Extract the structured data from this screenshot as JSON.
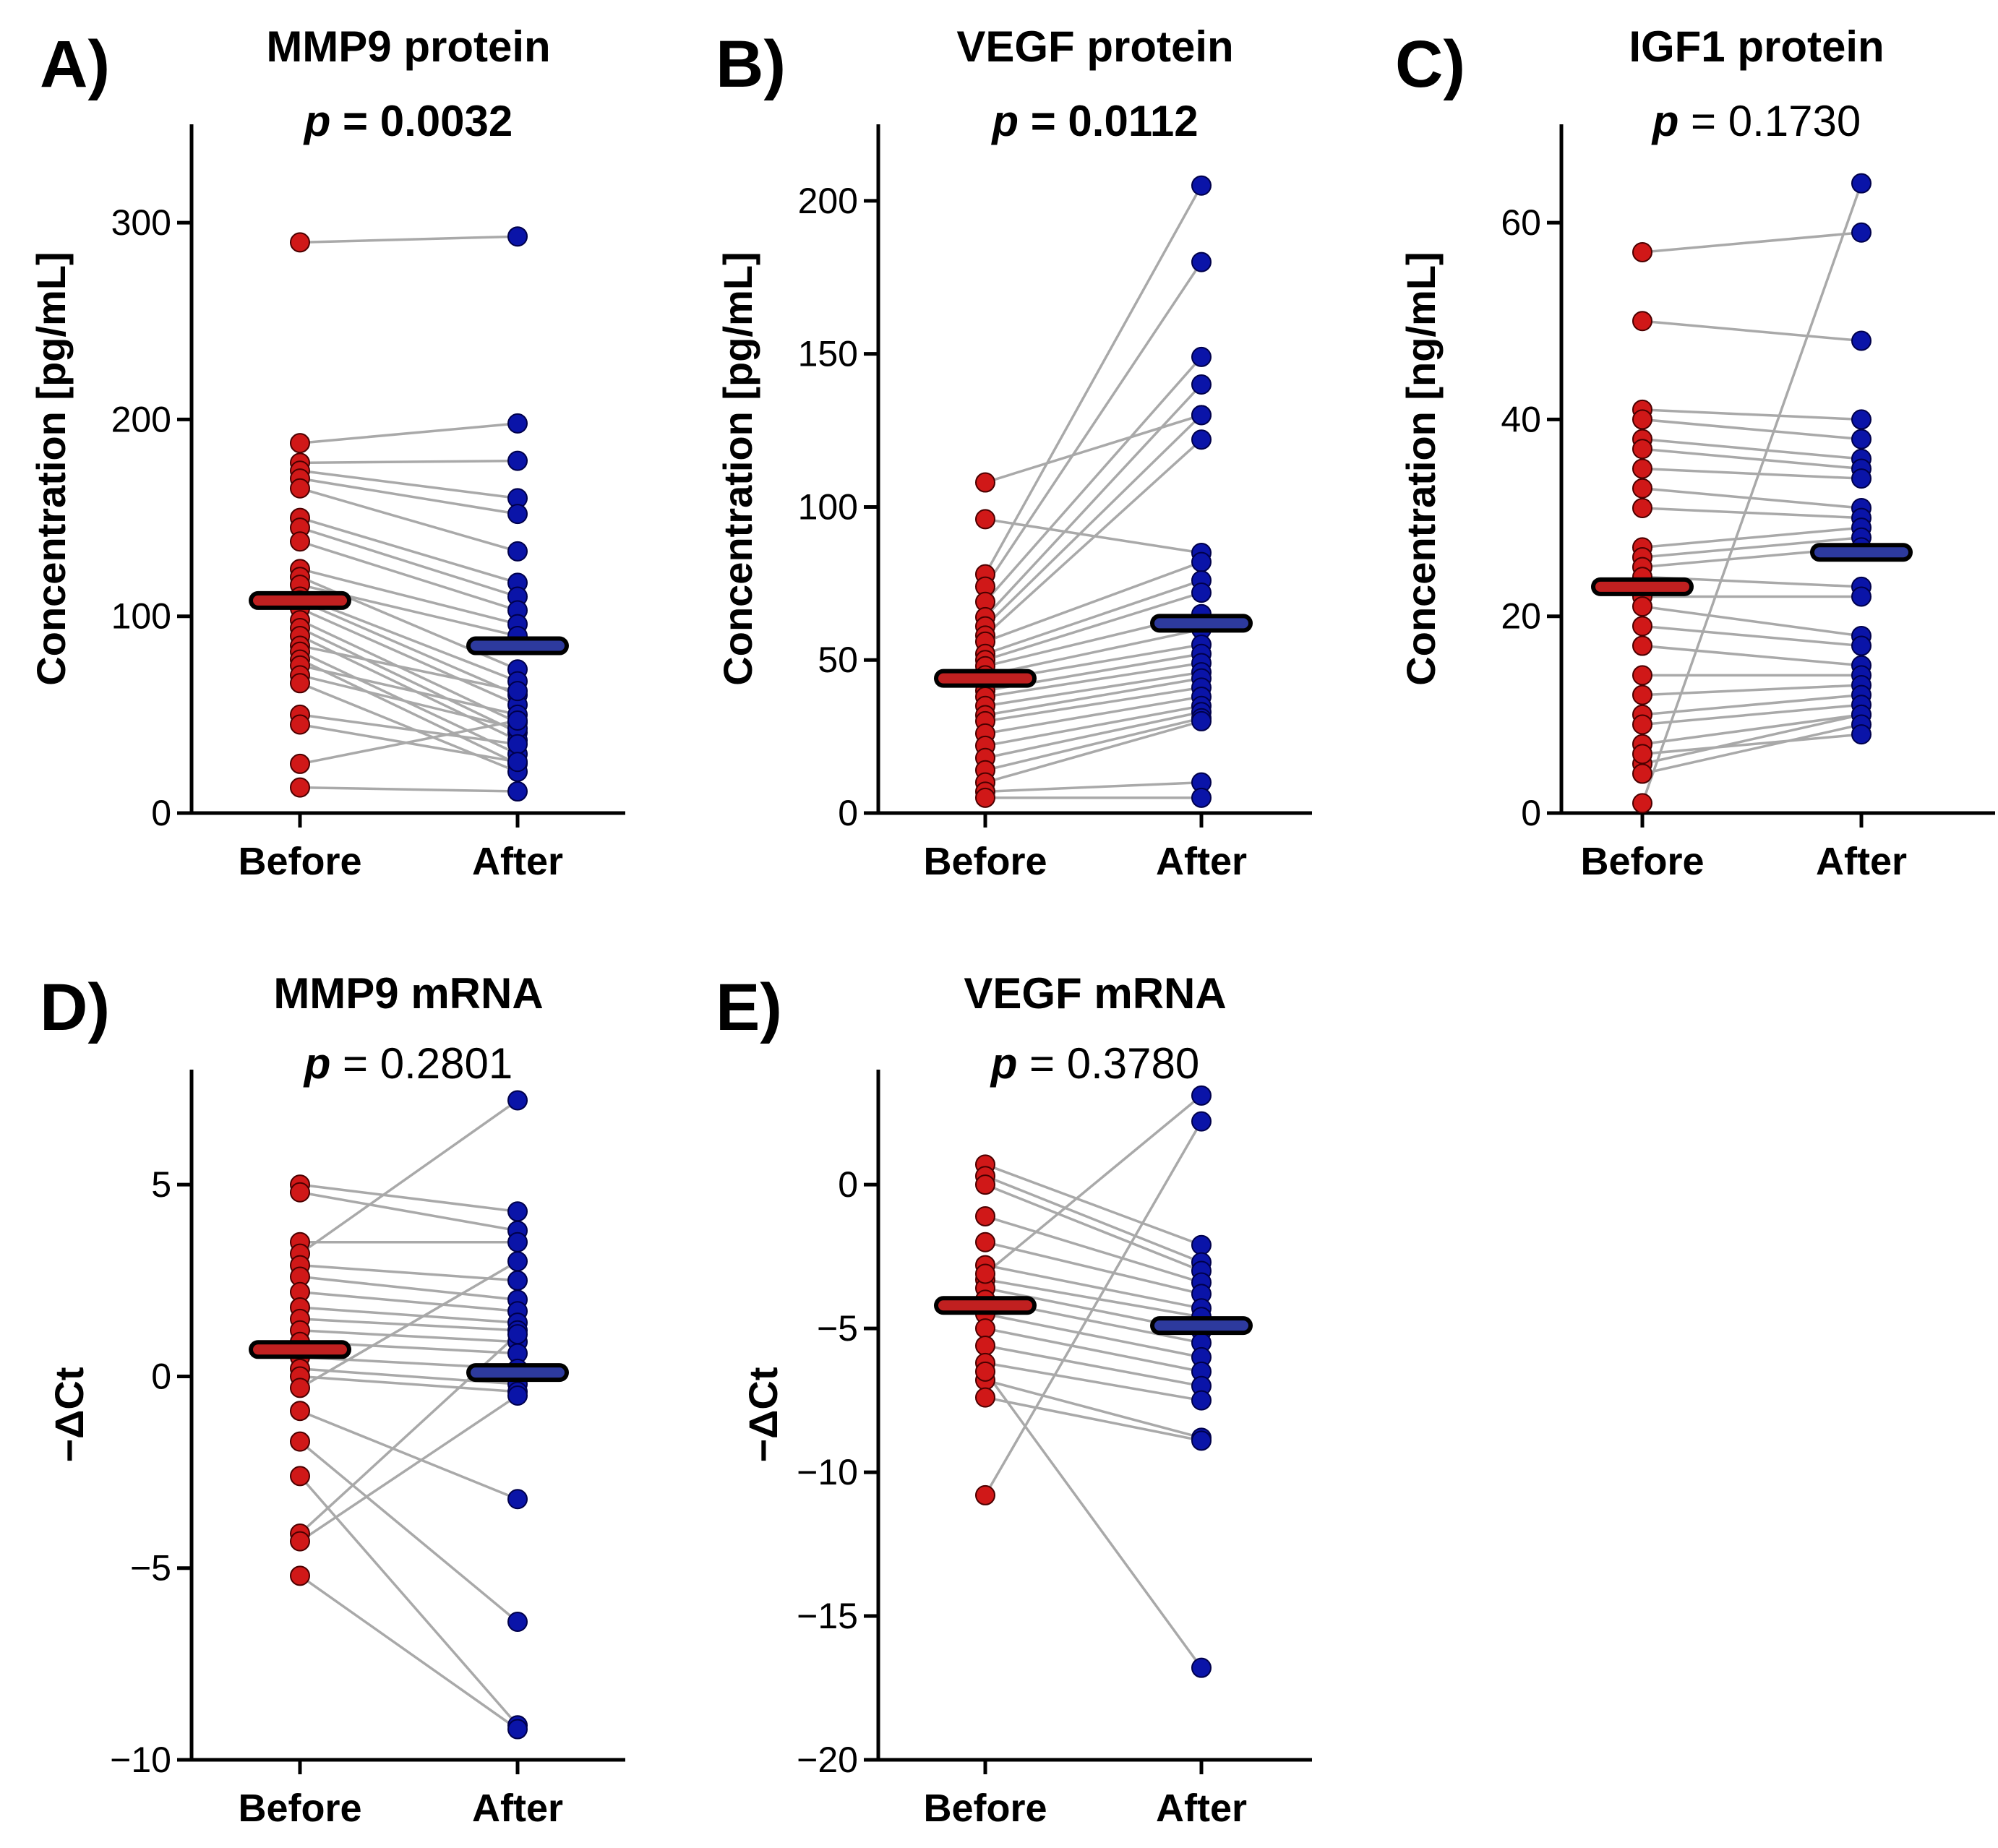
{
  "colors": {
    "before": "#d01818",
    "after": "#0a14a8",
    "before_mean": "#c02020",
    "after_mean": "#2d3a9e",
    "connector": "#a9a9a9",
    "axis": "#000000"
  },
  "chart_data": [
    {
      "id": "A",
      "type": "scatter",
      "panel_label": "A)",
      "title": "MMP9 protein",
      "p_prefix": "p",
      "p_text": " = 0.0032",
      "p_significant": true,
      "ylabel": "Concentration [pg/mL]",
      "ylim": [
        0,
        350
      ],
      "yticks": [
        0,
        100,
        200,
        300
      ],
      "ytick_labels": [
        "0",
        "100",
        "200",
        "300"
      ],
      "categories": [
        "Before",
        "After"
      ],
      "mean_before": 108,
      "mean_after": 85,
      "pairs": [
        [
          290,
          293
        ],
        [
          188,
          198
        ],
        [
          178,
          179
        ],
        [
          174,
          160
        ],
        [
          170,
          152
        ],
        [
          165,
          133
        ],
        [
          150,
          117
        ],
        [
          145,
          110
        ],
        [
          138,
          103
        ],
        [
          124,
          96
        ],
        [
          120,
          73
        ],
        [
          116,
          90
        ],
        [
          110,
          67
        ],
        [
          108,
          60
        ],
        [
          104,
          55
        ],
        [
          98,
          46
        ],
        [
          94,
          41
        ],
        [
          90,
          37
        ],
        [
          85,
          62
        ],
        [
          82,
          30
        ],
        [
          78,
          25
        ],
        [
          75,
          50
        ],
        [
          70,
          43
        ],
        [
          66,
          21
        ],
        [
          50,
          35
        ],
        [
          45,
          26
        ],
        [
          25,
          47
        ],
        [
          13,
          11
        ]
      ]
    },
    {
      "id": "B",
      "type": "scatter",
      "panel_label": "B)",
      "title": "VEGF protein",
      "p_prefix": "p",
      "p_text": " = 0.0112",
      "p_significant": true,
      "ylabel": "Concentration [pg/mL]",
      "ylim": [
        0,
        225
      ],
      "yticks": [
        0,
        50,
        100,
        150,
        200
      ],
      "ytick_labels": [
        "0",
        "50",
        "100",
        "150",
        "200"
      ],
      "categories": [
        "Before",
        "After"
      ],
      "mean_before": 44,
      "mean_after": 62,
      "pairs": [
        [
          108,
          130
        ],
        [
          96,
          85
        ],
        [
          78,
          205
        ],
        [
          74,
          180
        ],
        [
          69,
          149
        ],
        [
          64,
          140
        ],
        [
          61,
          130
        ],
        [
          58,
          122
        ],
        [
          56,
          82
        ],
        [
          52,
          76
        ],
        [
          50,
          72
        ],
        [
          48,
          65
        ],
        [
          45,
          60
        ],
        [
          43,
          55
        ],
        [
          40,
          52
        ],
        [
          38,
          49
        ],
        [
          35,
          46
        ],
        [
          32,
          44
        ],
        [
          30,
          41
        ],
        [
          26,
          38
        ],
        [
          22,
          35
        ],
        [
          18,
          33
        ],
        [
          14,
          31
        ],
        [
          10,
          30
        ],
        [
          7,
          10
        ],
        [
          5,
          5
        ]
      ]
    },
    {
      "id": "C",
      "type": "scatter",
      "panel_label": "C)",
      "title": "IGF1 protein",
      "p_prefix": "p",
      "p_text": " = 0.1730",
      "p_significant": false,
      "ylabel": "Concentration [ng/mL]",
      "ylim": [
        0,
        70
      ],
      "yticks": [
        0,
        20,
        40,
        60
      ],
      "ytick_labels": [
        "0",
        "20",
        "40",
        "60"
      ],
      "categories": [
        "Before",
        "After"
      ],
      "mean_before": 23,
      "mean_after": 26.5,
      "pairs": [
        [
          57,
          59
        ],
        [
          50,
          48
        ],
        [
          41,
          40
        ],
        [
          40,
          38
        ],
        [
          38,
          36
        ],
        [
          37,
          35
        ],
        [
          35,
          34
        ],
        [
          33,
          31
        ],
        [
          31,
          30
        ],
        [
          27,
          29
        ],
        [
          26,
          28
        ],
        [
          25,
          27
        ],
        [
          24,
          23
        ],
        [
          22,
          22
        ],
        [
          21,
          18
        ],
        [
          19,
          17
        ],
        [
          17,
          15
        ],
        [
          14,
          14
        ],
        [
          12,
          13
        ],
        [
          10,
          12
        ],
        [
          9,
          11
        ],
        [
          7,
          10
        ],
        [
          5,
          10
        ],
        [
          4,
          9
        ],
        [
          1,
          64
        ],
        [
          6,
          8
        ]
      ]
    },
    {
      "id": "D",
      "type": "scatter",
      "panel_label": "D)",
      "title": "MMP9 mRNA",
      "p_prefix": "p",
      "p_text": " = 0.2801",
      "p_significant": false,
      "ylabel": "−ΔCt",
      "ylim": [
        -10,
        8
      ],
      "yticks": [
        -10,
        -5,
        0,
        5
      ],
      "ytick_labels": [
        "−10",
        "−5",
        "0",
        "5"
      ],
      "categories": [
        "Before",
        "After"
      ],
      "mean_before": 0.7,
      "mean_after": 0.1,
      "pairs": [
        [
          5.0,
          4.3
        ],
        [
          4.8,
          3.8
        ],
        [
          3.5,
          3.5
        ],
        [
          3.2,
          7.2
        ],
        [
          2.9,
          2.5
        ],
        [
          2.6,
          2.0
        ],
        [
          2.2,
          1.7
        ],
        [
          1.8,
          1.4
        ],
        [
          1.5,
          1.2
        ],
        [
          1.2,
          0.9
        ],
        [
          0.9,
          0.6
        ],
        [
          0.5,
          0.2
        ],
        [
          0.2,
          -0.2
        ],
        [
          0.0,
          -0.4
        ],
        [
          -0.3,
          3.0
        ],
        [
          -0.9,
          -3.2
        ],
        [
          -1.7,
          -6.4
        ],
        [
          -2.6,
          -9.1
        ],
        [
          -4.1,
          1.1
        ],
        [
          -4.3,
          -0.5
        ],
        [
          -5.2,
          -9.2
        ]
      ]
    },
    {
      "id": "E",
      "type": "scatter",
      "panel_label": "E)",
      "title": "VEGF mRNA",
      "p_prefix": "p",
      "p_text": " = 0.3780",
      "p_significant": false,
      "ylabel": "−ΔCt",
      "ylim": [
        -20,
        4
      ],
      "yticks": [
        -20,
        -15,
        -10,
        -5,
        0
      ],
      "ytick_labels": [
        "−20",
        "−15",
        "−10",
        "−5",
        "0"
      ],
      "categories": [
        "Before",
        "After"
      ],
      "mean_before": -4.2,
      "mean_after": -4.9,
      "pairs": [
        [
          0.7,
          -2.1
        ],
        [
          0.3,
          -2.7
        ],
        [
          0.0,
          -3.0
        ],
        [
          -1.1,
          -3.4
        ],
        [
          -2.0,
          -3.8
        ],
        [
          -2.8,
          -4.3
        ],
        [
          -3.3,
          -4.6
        ],
        [
          -3.6,
          -5.1
        ],
        [
          -4.0,
          -5.5
        ],
        [
          -4.5,
          -6.0
        ],
        [
          -5.0,
          -6.5
        ],
        [
          -5.6,
          -7.0
        ],
        [
          -6.2,
          -7.5
        ],
        [
          -6.8,
          -8.8
        ],
        [
          -7.4,
          -8.9
        ],
        [
          -6.5,
          -16.8
        ],
        [
          -10.8,
          2.2
        ],
        [
          -3.1,
          3.1
        ]
      ]
    }
  ]
}
